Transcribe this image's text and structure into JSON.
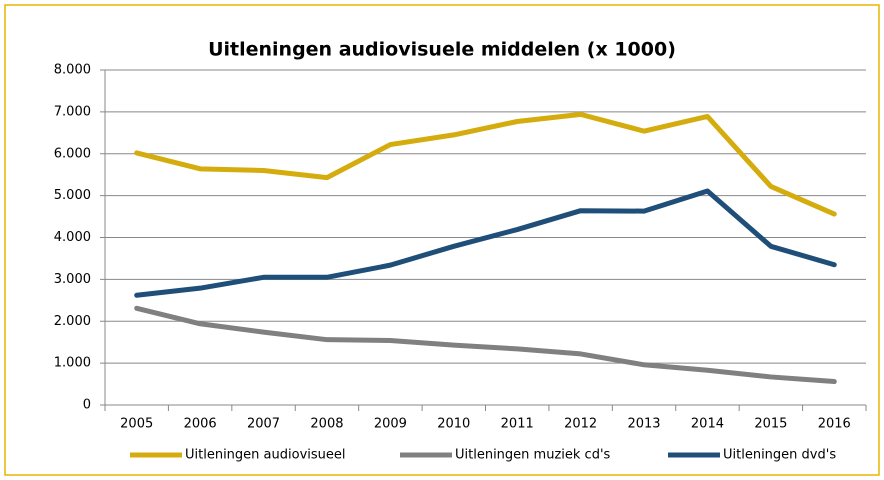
{
  "chart_data": {
    "type": "line",
    "title": "Uitleningen audiovisuele middelen (x 1000)",
    "categories": [
      "2005",
      "2006",
      "2007",
      "2008",
      "2009",
      "2010",
      "2011",
      "2012",
      "2013",
      "2014",
      "2015",
      "2016"
    ],
    "series": [
      {
        "name": "Uitleningen audiovisueel",
        "color": "#d4ac0d",
        "values": [
          6020,
          5640,
          5600,
          5430,
          6220,
          6450,
          6770,
          6940,
          6540,
          6890,
          5220,
          4560
        ]
      },
      {
        "name": "Uitleningen muziek cd's",
        "color": "#808080",
        "values": [
          2310,
          1940,
          1740,
          1560,
          1540,
          1430,
          1340,
          1220,
          960,
          830,
          670,
          560
        ]
      },
      {
        "name": "Uitleningen dvd's",
        "color": "#1f4e79",
        "values": [
          2620,
          2790,
          3050,
          3050,
          3340,
          3790,
          4190,
          4640,
          4630,
          5110,
          3790,
          3350
        ]
      }
    ],
    "ylim": [
      0,
      8000
    ],
    "yticks": [
      {
        "value": 0,
        "label": "0"
      },
      {
        "value": 1000,
        "label": "1.000"
      },
      {
        "value": 2000,
        "label": "2.000"
      },
      {
        "value": 3000,
        "label": "3.000"
      },
      {
        "value": 4000,
        "label": "4.000"
      },
      {
        "value": 5000,
        "label": "5.000"
      },
      {
        "value": 6000,
        "label": "6.000"
      },
      {
        "value": 7000,
        "label": "7.000"
      },
      {
        "value": 8000,
        "label": "8.000"
      }
    ],
    "grid": true,
    "legend": "bottom"
  }
}
